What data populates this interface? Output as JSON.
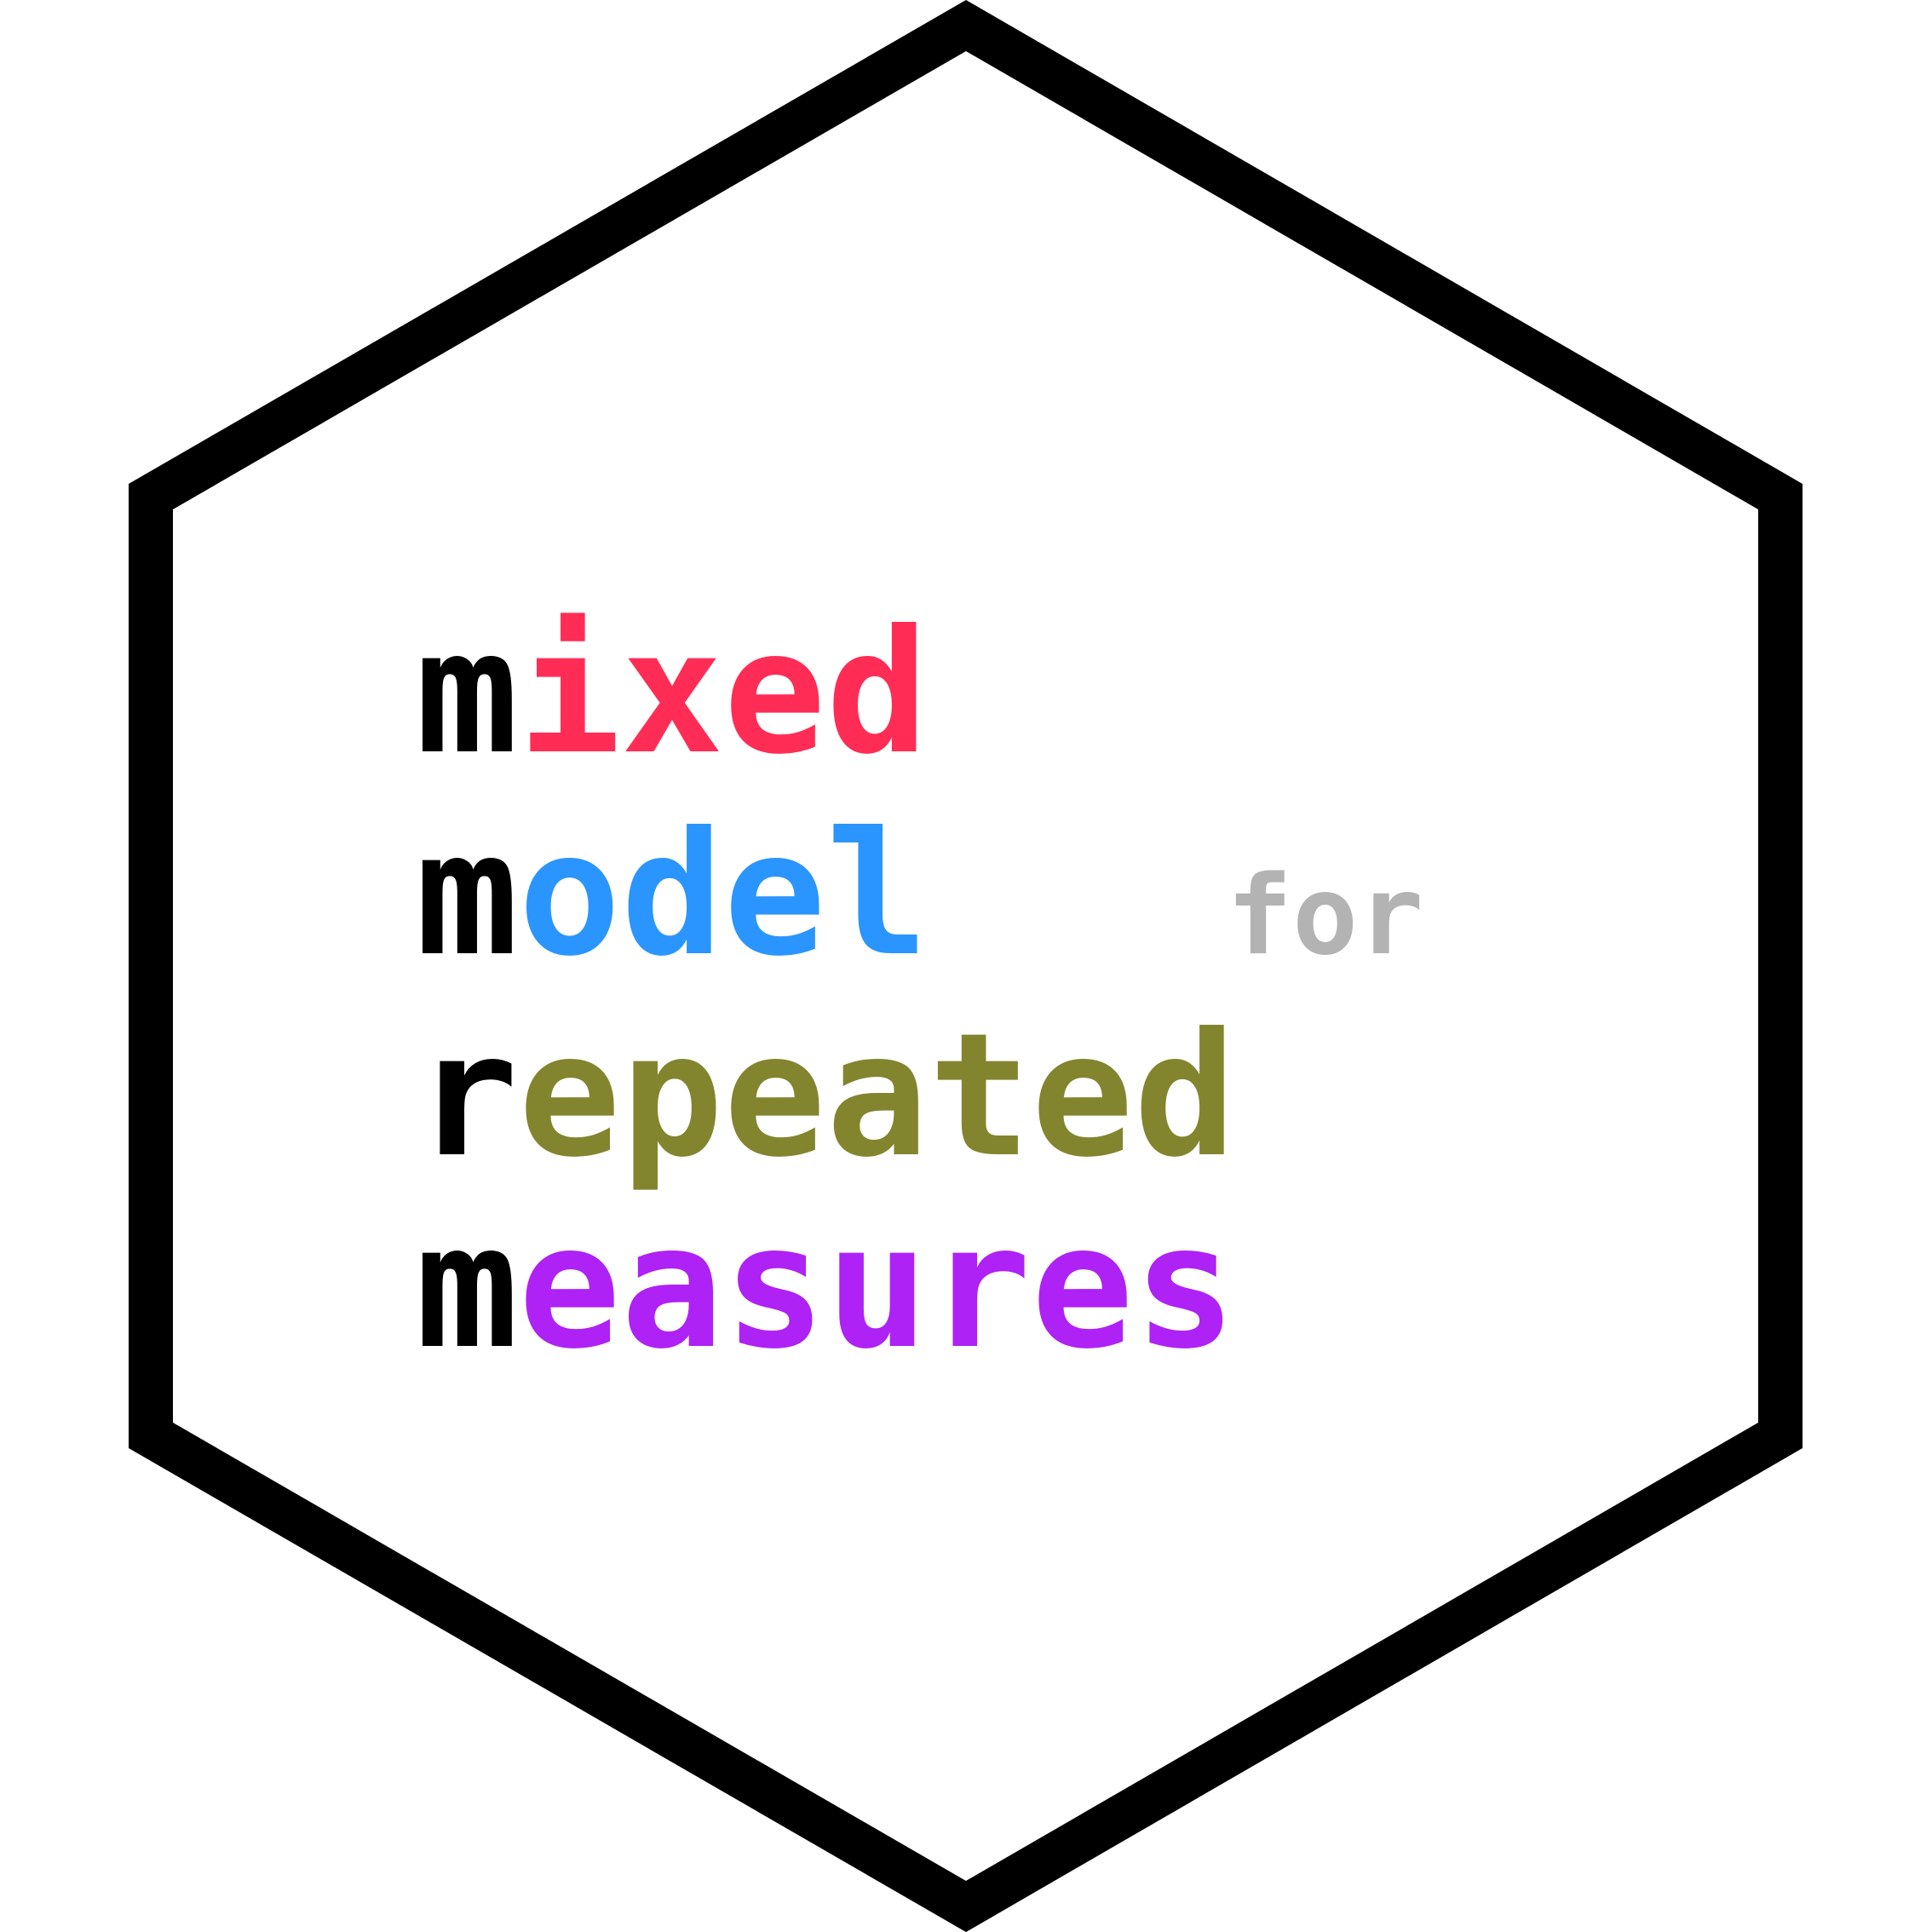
{
  "logo": {
    "line1": {
      "first_letter": "m",
      "rest": "ixed"
    },
    "line2": {
      "first_letter": "m",
      "rest": "odel",
      "connector": "for"
    },
    "line3": {
      "first_letter": "r",
      "rest": "epeated"
    },
    "line4": {
      "first_letter": "m",
      "rest": "easures"
    }
  },
  "colors": {
    "border": "#000000",
    "background": "#ffffff",
    "initial": "#000000",
    "mixed": "#ff2d55",
    "model": "#2b95ff",
    "for": "#b3b3b3",
    "repeated": "#82852e",
    "measures": "#ae22f5"
  }
}
